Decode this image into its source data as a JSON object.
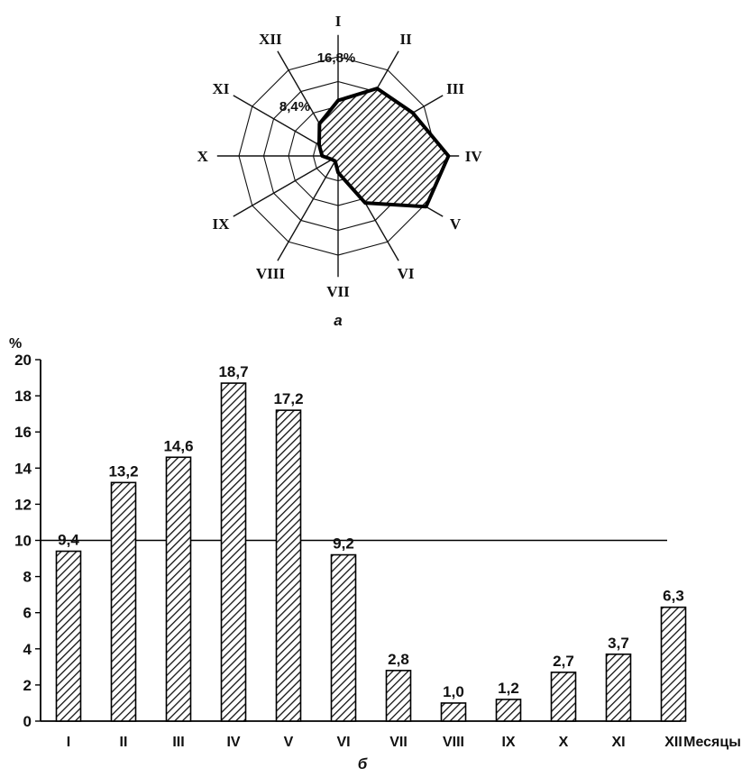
{
  "chart_data": [
    {
      "type": "radar",
      "caption": "а",
      "categories": [
        "I",
        "II",
        "III",
        "IV",
        "V",
        "VI",
        "VII",
        "VIII",
        "IX",
        "X",
        "XI",
        "XII"
      ],
      "values": [
        9.4,
        13.2,
        14.6,
        18.7,
        17.2,
        9.2,
        2.8,
        1.0,
        1.2,
        2.7,
        3.7,
        6.3
      ],
      "ring_labels": [
        "8,4%",
        "16,8%"
      ],
      "rings": [
        4.2,
        8.4,
        12.6,
        16.8
      ],
      "fill": "hatched"
    },
    {
      "type": "bar",
      "caption": "б",
      "xlabel": "Месяцы",
      "ylabel": "%",
      "categories": [
        "I",
        "II",
        "III",
        "IV",
        "V",
        "VI",
        "VII",
        "VIII",
        "IX",
        "X",
        "XI",
        "XII"
      ],
      "values": [
        9.4,
        13.2,
        14.6,
        18.7,
        17.2,
        9.2,
        2.8,
        1.0,
        1.2,
        2.7,
        3.7,
        6.3
      ],
      "value_labels": [
        "9,4",
        "13,2",
        "14,6",
        "18,7",
        "17,2",
        "9,2",
        "2,8",
        "1,0",
        "1,2",
        "2,7",
        "3,7",
        "6,3"
      ],
      "ylim": [
        0,
        20
      ],
      "yticks": [
        0,
        2,
        4,
        6,
        8,
        10,
        12,
        14,
        16,
        18,
        20
      ],
      "reference_line": 10,
      "fill": "hatched"
    }
  ]
}
